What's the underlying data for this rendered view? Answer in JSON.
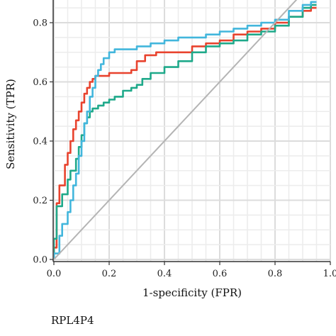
{
  "chart_data": {
    "type": "line",
    "xlabel": "1-specificity (FPR)",
    "ylabel": "Sensitivity (TPR)",
    "xlim": [
      0,
      1
    ],
    "ylim": [
      0,
      0.85
    ],
    "xticks": [
      "0.0",
      "0.2",
      "0.4",
      "0.6",
      "0.8",
      "1.0"
    ],
    "yticks": [
      "0.0",
      "0.2",
      "0.4",
      "0.6",
      "0.8"
    ],
    "grid": true,
    "series": [
      {
        "color": "#e8432e",
        "x": [
          0,
          0.01,
          0.01,
          0.02,
          0.02,
          0.04,
          0.05,
          0.06,
          0.07,
          0.08,
          0.09,
          0.1,
          0.11,
          0.12,
          0.13,
          0.14,
          0.15,
          0.16,
          0.18,
          0.2,
          0.22,
          0.25,
          0.28,
          0.3,
          0.33,
          0.37,
          0.42,
          0.47,
          0.5,
          0.55,
          0.6,
          0.65,
          0.7,
          0.75,
          0.8,
          0.85,
          0.9,
          0.93,
          0.95
        ],
        "y": [
          0,
          0.04,
          0.17,
          0.19,
          0.21,
          0.25,
          0.32,
          0.36,
          0.4,
          0.44,
          0.47,
          0.5,
          0.53,
          0.56,
          0.58,
          0.6,
          0.61,
          0.62,
          0.62,
          0.62,
          0.63,
          0.63,
          0.63,
          0.64,
          0.67,
          0.69,
          0.7,
          0.7,
          0.7,
          0.72,
          0.73,
          0.74,
          0.76,
          0.77,
          0.78,
          0.8,
          0.82,
          0.84,
          0.85
        ]
      },
      {
        "color": "#1fa98a",
        "x": [
          0,
          0.01,
          0.01,
          0.03,
          0.05,
          0.06,
          0.08,
          0.09,
          0.1,
          0.11,
          0.12,
          0.13,
          0.14,
          0.16,
          0.18,
          0.2,
          0.22,
          0.25,
          0.28,
          0.3,
          0.32,
          0.35,
          0.4,
          0.45,
          0.5,
          0.55,
          0.6,
          0.65,
          0.7,
          0.75,
          0.8,
          0.85,
          0.9,
          0.93,
          0.95
        ],
        "y": [
          0,
          0.07,
          0.16,
          0.18,
          0.22,
          0.27,
          0.3,
          0.34,
          0.38,
          0.42,
          0.46,
          0.48,
          0.5,
          0.51,
          0.52,
          0.53,
          0.54,
          0.55,
          0.57,
          0.58,
          0.59,
          0.61,
          0.63,
          0.65,
          0.67,
          0.7,
          0.72,
          0.73,
          0.74,
          0.76,
          0.77,
          0.79,
          0.82,
          0.85,
          0.86
        ]
      },
      {
        "color": "#42b6dc",
        "x": [
          0,
          0.02,
          0.03,
          0.05,
          0.06,
          0.07,
          0.08,
          0.09,
          0.1,
          0.11,
          0.12,
          0.13,
          0.14,
          0.15,
          0.16,
          0.17,
          0.18,
          0.2,
          0.22,
          0.24,
          0.26,
          0.3,
          0.35,
          0.4,
          0.45,
          0.5,
          0.55,
          0.6,
          0.65,
          0.7,
          0.75,
          0.8,
          0.85,
          0.9,
          0.93,
          0.95
        ],
        "y": [
          0,
          0.02,
          0.08,
          0.12,
          0.16,
          0.2,
          0.25,
          0.29,
          0.35,
          0.4,
          0.46,
          0.5,
          0.55,
          0.58,
          0.62,
          0.64,
          0.66,
          0.68,
          0.7,
          0.71,
          0.71,
          0.71,
          0.72,
          0.73,
          0.74,
          0.75,
          0.75,
          0.76,
          0.77,
          0.78,
          0.79,
          0.8,
          0.81,
          0.84,
          0.86,
          0.87
        ]
      },
      {
        "color": "#b4b4b4",
        "x": [
          0,
          1
        ],
        "y": [
          0,
          1
        ]
      }
    ]
  },
  "footer": {
    "label": "RPL4P4"
  }
}
